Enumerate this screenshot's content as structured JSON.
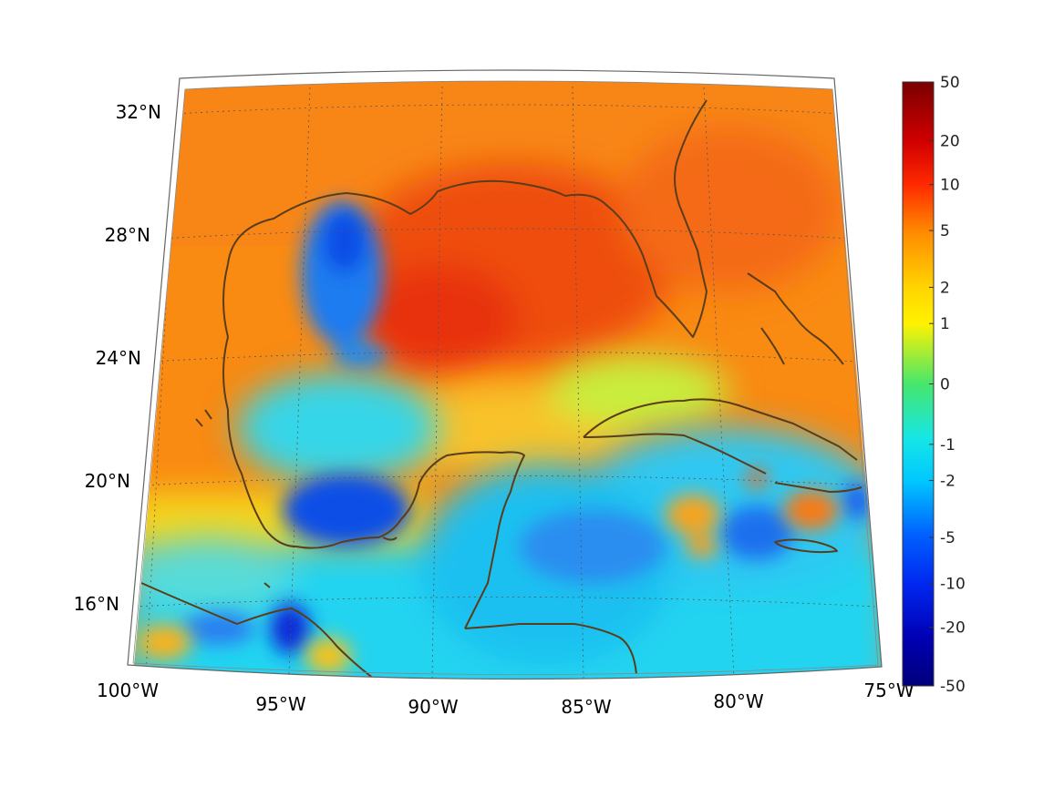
{
  "figure": {
    "type": "map",
    "projection": "conic",
    "region_extent": {
      "lon_min": -100,
      "lon_max": -75,
      "lat_min": 14,
      "lat_max": 33
    },
    "grid": true,
    "colormap": "jet",
    "colors": {
      "high": "#e8300c",
      "mid_high": "#f57b0c",
      "mid": "#ffe800",
      "zero": "#46e66c",
      "mid_low": "#16d8f2",
      "low": "#1140ea",
      "coastline": "#5a3d1a"
    },
    "feature_notes": [
      "coastlines",
      "Gulf of Mexico",
      "Caribbean Sea",
      "Florida",
      "Cuba",
      "Yucatan Peninsula"
    ]
  },
  "axes": {
    "lat_labels": [
      "32°N",
      "28°N",
      "24°N",
      "20°N",
      "16°N"
    ],
    "lon_labels": [
      "100°W",
      "95°W",
      "90°W",
      "85°W",
      "80°W",
      "75°W"
    ]
  },
  "colorbar": {
    "ticks": [
      "50",
      "20",
      "10",
      "5",
      "2",
      "1",
      "0",
      "-1",
      "-2",
      "-5",
      "-10",
      "-20",
      "-50"
    ],
    "tick_values": [
      50,
      20,
      10,
      5,
      2,
      1,
      0,
      -1,
      -2,
      -5,
      -10,
      -20,
      -50
    ],
    "scale": "symmetric-nonlinear",
    "range": [
      -50,
      50
    ]
  }
}
